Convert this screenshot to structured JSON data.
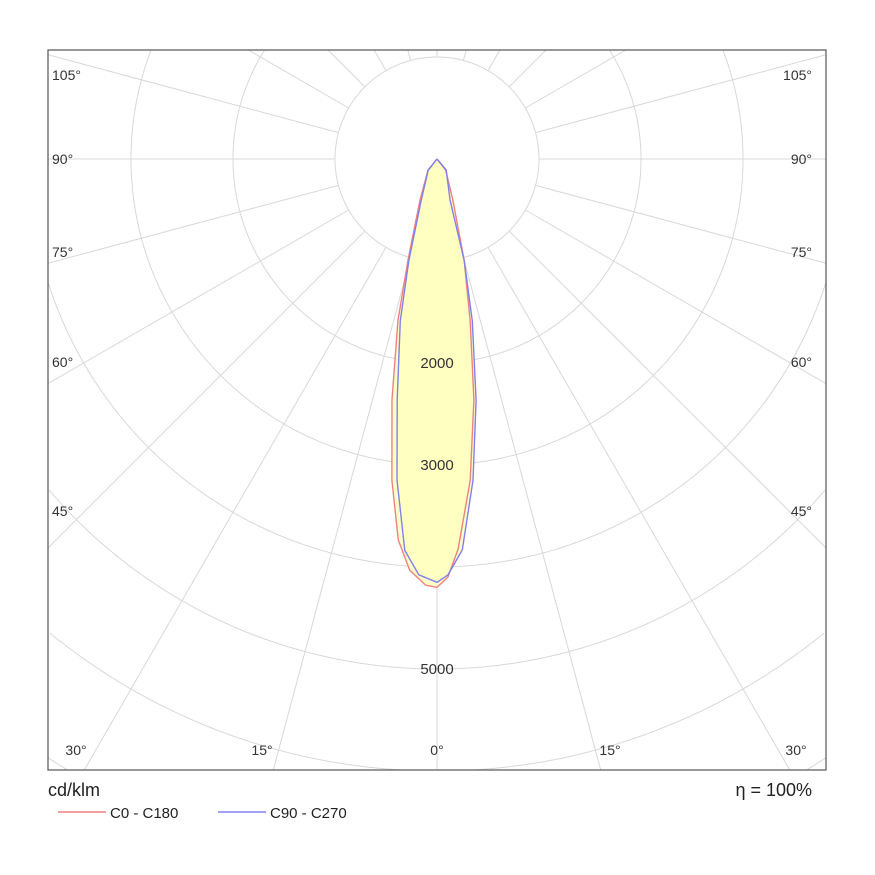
{
  "chart_data": {
    "type": "polar",
    "title": "",
    "unit_label": "cd/klm",
    "efficiency_label": "η = 100%",
    "ring_step": 1000,
    "ring_labels": [
      {
        "value": 2000,
        "text": "2000"
      },
      {
        "value": 3000,
        "text": "3000"
      },
      {
        "value": 5000,
        "text": "5000"
      }
    ],
    "angle_labels_left": [
      "105°",
      "90°",
      "75°",
      "60°",
      "45°"
    ],
    "angle_labels_right": [
      "105°",
      "90°",
      "75°",
      "60°",
      "45°"
    ],
    "angle_labels_bottom": [
      "30°",
      "15°",
      "0°",
      "15°",
      "30°"
    ],
    "fill_color": "#ffffc0",
    "series": [
      {
        "name": "C0 - C180",
        "color": "#f08080",
        "points": [
          [
            -39,
            140
          ],
          [
            -22.5,
            435
          ],
          [
            -16,
            1030
          ],
          [
            -13.6,
            1625
          ],
          [
            -10.6,
            2400
          ],
          [
            -8,
            3180
          ],
          [
            -5.8,
            3755
          ],
          [
            -3.8,
            4040
          ],
          [
            -1.5,
            4180
          ],
          [
            0,
            4200
          ],
          [
            1.5,
            4100
          ],
          [
            3.1,
            3830
          ],
          [
            5.9,
            3170
          ],
          [
            8.7,
            2390
          ],
          [
            11.6,
            1620
          ],
          [
            15,
            1030
          ],
          [
            21,
            435
          ],
          [
            38,
            140
          ]
        ]
      },
      {
        "name": "C90 - C270",
        "color": "#8080f0",
        "points": [
          [
            -38,
            140
          ],
          [
            -21,
            430
          ],
          [
            -15.5,
            1030
          ],
          [
            -12.8,
            1625
          ],
          [
            -9.4,
            2390
          ],
          [
            -7.1,
            3170
          ],
          [
            -4.7,
            3850
          ],
          [
            -2.5,
            4080
          ],
          [
            0,
            4150
          ],
          [
            1.5,
            4080
          ],
          [
            3.7,
            3840
          ],
          [
            6.4,
            3170
          ],
          [
            9.2,
            2395
          ],
          [
            12.3,
            1625
          ],
          [
            15,
            1030
          ],
          [
            17.6,
            425
          ],
          [
            40,
            140
          ]
        ]
      }
    ]
  }
}
